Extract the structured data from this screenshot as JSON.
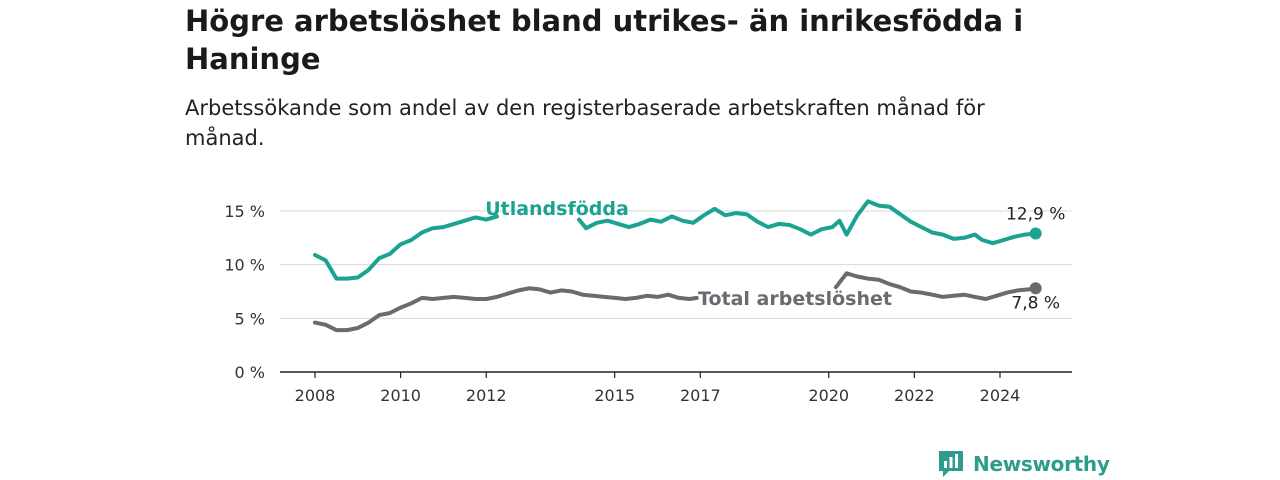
{
  "title": "Högre arbetslöshet bland utrikes- än inrikesfödda i Haninge",
  "subtitle": "Arbetssökande som andel av den registerbaserade arbetskraften månad för månad.",
  "brand": {
    "name": "Newsworthy",
    "icon": "newsworthy-logo-icon"
  },
  "colors": {
    "utlandsfodda": "#1aa391",
    "total": "#6b6a70"
  },
  "chart_data": {
    "type": "line",
    "title": "",
    "xlabel": "",
    "ylabel": "",
    "xlim": [
      "2008-01",
      "2024-12"
    ],
    "ylim": [
      0,
      17
    ],
    "y_ticks": [
      0,
      5,
      10,
      15
    ],
    "y_tick_labels": [
      "0 %",
      "5 %",
      "10 %",
      "15 %"
    ],
    "x_ticks": [
      "2008",
      "2010",
      "2012",
      "2015",
      "2017",
      "2020",
      "2022",
      "2024"
    ],
    "grid": "horizontal",
    "series": [
      {
        "name": "Utlandsfödda",
        "color": "#1aa391",
        "end_label": "12,9 %",
        "points": [
          [
            "2008-01",
            10.9
          ],
          [
            "2008-04",
            10.4
          ],
          [
            "2008-07",
            8.7
          ],
          [
            "2008-10",
            8.7
          ],
          [
            "2009-01",
            8.8
          ],
          [
            "2009-04",
            9.5
          ],
          [
            "2009-07",
            10.6
          ],
          [
            "2009-10",
            11.0
          ],
          [
            "2010-01",
            11.9
          ],
          [
            "2010-04",
            12.3
          ],
          [
            "2010-07",
            13.0
          ],
          [
            "2010-10",
            13.4
          ],
          [
            "2011-01",
            13.5
          ],
          [
            "2011-04",
            13.8
          ],
          [
            "2011-07",
            14.1
          ],
          [
            "2011-10",
            14.4
          ],
          [
            "2012-01",
            14.2
          ],
          [
            "2012-04",
            14.5
          ],
          null,
          [
            "2014-03",
            14.2
          ],
          [
            "2014-05",
            13.4
          ],
          [
            "2014-08",
            13.9
          ],
          [
            "2014-11",
            14.1
          ],
          [
            "2015-02",
            13.8
          ],
          [
            "2015-05",
            13.5
          ],
          [
            "2015-08",
            13.8
          ],
          [
            "2015-11",
            14.2
          ],
          [
            "2016-02",
            14.0
          ],
          [
            "2016-05",
            14.5
          ],
          [
            "2016-08",
            14.1
          ],
          [
            "2016-11",
            13.9
          ],
          [
            "2017-02",
            14.6
          ],
          [
            "2017-05",
            15.2
          ],
          [
            "2017-08",
            14.6
          ],
          [
            "2017-11",
            14.8
          ],
          [
            "2018-02",
            14.7
          ],
          [
            "2018-05",
            14.0
          ],
          [
            "2018-08",
            13.5
          ],
          [
            "2018-11",
            13.8
          ],
          [
            "2019-02",
            13.7
          ],
          [
            "2019-05",
            13.3
          ],
          [
            "2019-08",
            12.8
          ],
          [
            "2019-11",
            13.3
          ],
          [
            "2020-02",
            13.5
          ],
          [
            "2020-04",
            14.1
          ],
          [
            "2020-06",
            12.8
          ],
          [
            "2020-09",
            14.6
          ],
          [
            "2020-12",
            15.9
          ],
          [
            "2021-03",
            15.5
          ],
          [
            "2021-06",
            15.4
          ],
          [
            "2021-09",
            14.7
          ],
          [
            "2021-12",
            14.0
          ],
          [
            "2022-03",
            13.5
          ],
          [
            "2022-06",
            13.0
          ],
          [
            "2022-09",
            12.8
          ],
          [
            "2022-12",
            12.4
          ],
          [
            "2023-03",
            12.5
          ],
          [
            "2023-06",
            12.8
          ],
          [
            "2023-08",
            12.3
          ],
          [
            "2023-11",
            12.0
          ],
          [
            "2024-02",
            12.3
          ],
          [
            "2024-05",
            12.6
          ],
          [
            "2024-08",
            12.8
          ],
          [
            "2024-11",
            12.9
          ]
        ]
      },
      {
        "name": "Total arbetslöshet",
        "color": "#6b6a70",
        "end_label": "7,8 %",
        "points": [
          [
            "2008-01",
            4.6
          ],
          [
            "2008-04",
            4.4
          ],
          [
            "2008-07",
            3.9
          ],
          [
            "2008-10",
            3.9
          ],
          [
            "2009-01",
            4.1
          ],
          [
            "2009-04",
            4.6
          ],
          [
            "2009-07",
            5.3
          ],
          [
            "2009-10",
            5.5
          ],
          [
            "2010-01",
            6.0
          ],
          [
            "2010-04",
            6.4
          ],
          [
            "2010-07",
            6.9
          ],
          [
            "2010-10",
            6.8
          ],
          [
            "2011-01",
            6.9
          ],
          [
            "2011-04",
            7.0
          ],
          [
            "2011-07",
            6.9
          ],
          [
            "2011-10",
            6.8
          ],
          [
            "2012-01",
            6.8
          ],
          [
            "2012-04",
            7.0
          ],
          [
            "2012-07",
            7.3
          ],
          [
            "2012-10",
            7.6
          ],
          [
            "2013-01",
            7.8
          ],
          [
            "2013-04",
            7.7
          ],
          [
            "2013-07",
            7.4
          ],
          [
            "2013-10",
            7.6
          ],
          [
            "2014-01",
            7.5
          ],
          [
            "2014-04",
            7.2
          ],
          [
            "2014-07",
            7.1
          ],
          [
            "2014-10",
            7.0
          ],
          [
            "2015-01",
            6.9
          ],
          [
            "2015-04",
            6.8
          ],
          [
            "2015-07",
            6.9
          ],
          [
            "2015-10",
            7.1
          ],
          [
            "2016-01",
            7.0
          ],
          [
            "2016-04",
            7.2
          ],
          [
            "2016-07",
            6.9
          ],
          [
            "2016-10",
            6.8
          ],
          [
            "2016-12",
            6.9
          ],
          null,
          [
            "2020-03",
            7.9
          ],
          [
            "2020-06",
            9.2
          ],
          [
            "2020-09",
            8.9
          ],
          [
            "2020-12",
            8.7
          ],
          [
            "2021-03",
            8.6
          ],
          [
            "2021-06",
            8.2
          ],
          [
            "2021-09",
            7.9
          ],
          [
            "2021-12",
            7.5
          ],
          [
            "2022-03",
            7.4
          ],
          [
            "2022-06",
            7.2
          ],
          [
            "2022-09",
            7.0
          ],
          [
            "2022-12",
            7.1
          ],
          [
            "2023-03",
            7.2
          ],
          [
            "2023-06",
            7.0
          ],
          [
            "2023-09",
            6.8
          ],
          [
            "2023-12",
            7.1
          ],
          [
            "2024-03",
            7.4
          ],
          [
            "2024-06",
            7.6
          ],
          [
            "2024-09",
            7.7
          ],
          [
            "2024-11",
            7.8
          ]
        ]
      }
    ]
  }
}
